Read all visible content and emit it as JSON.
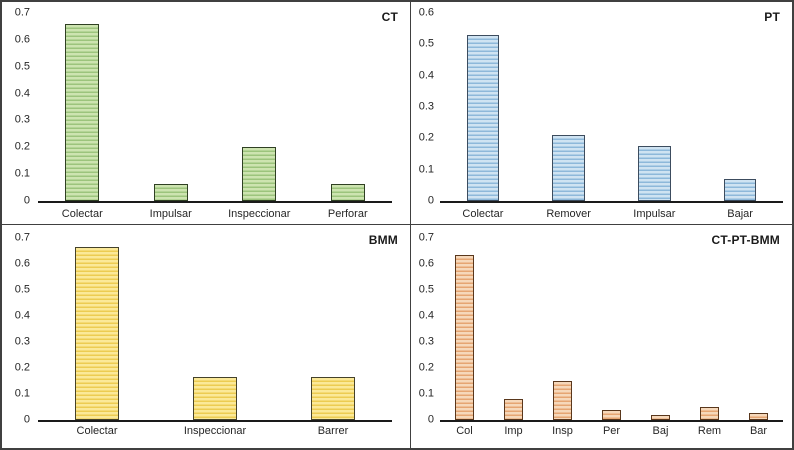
{
  "page": {
    "background": "#ffffff",
    "frame_border_color": "#404040",
    "axis_line_color": "#1a1a1a",
    "text_color": "#262626"
  },
  "chart_data": [
    {
      "type": "bar",
      "title": "CT",
      "categories": [
        "Colectar",
        "Impulsar",
        "Inspeccionar",
        "Perforar"
      ],
      "values": [
        0.66,
        0.065,
        0.2,
        0.065
      ],
      "ylim": [
        0,
        0.7
      ],
      "yticks": [
        "0.7",
        "0.6",
        "0.5",
        "0.4",
        "0.3",
        "0.2",
        "0.1",
        "0"
      ],
      "xlabel": "",
      "ylabel": "",
      "grid": false,
      "legend": "none",
      "title_position": "top-right",
      "colors": {
        "fill": "#cde4b0",
        "stripe": "#9cc47c",
        "border": "#2f4023"
      }
    },
    {
      "type": "bar",
      "title": "PT",
      "categories": [
        "Colectar",
        "Remover",
        "Impulsar",
        "Bajar"
      ],
      "values": [
        0.53,
        0.21,
        0.175,
        0.07
      ],
      "ylim": [
        0,
        0.6
      ],
      "yticks": [
        "0.6",
        "0.5",
        "0.4",
        "0.3",
        "0.2",
        "0.1",
        "0"
      ],
      "xlabel": "",
      "ylabel": "",
      "grid": false,
      "legend": "none",
      "title_position": "top-right",
      "colors": {
        "fill": "#cfe3f2",
        "stripe": "#8db8da",
        "border": "#3c4c5e"
      }
    },
    {
      "type": "bar",
      "title": "BMM",
      "categories": [
        "Colectar",
        "Inspeccionar",
        "Barrer"
      ],
      "values": [
        0.665,
        0.165,
        0.165
      ],
      "ylim": [
        0,
        0.7
      ],
      "yticks": [
        "0.7",
        "0.6",
        "0.5",
        "0.4",
        "0.3",
        "0.2",
        "0.1",
        "0"
      ],
      "xlabel": "",
      "ylabel": "",
      "grid": false,
      "legend": "none",
      "title_position": "top-right",
      "colors": {
        "fill": "#fbe998",
        "stripe": "#eccc52",
        "border": "#45422a"
      }
    },
    {
      "type": "bar",
      "title": "CT-PT-BMM",
      "categories": [
        "Col",
        "Imp",
        "Insp",
        "Per",
        "Baj",
        "Rem",
        "Bar"
      ],
      "values": [
        0.635,
        0.08,
        0.15,
        0.04,
        0.018,
        0.05,
        0.027
      ],
      "ylim": [
        0,
        0.7
      ],
      "yticks": [
        "0.7",
        "0.6",
        "0.5",
        "0.4",
        "0.3",
        "0.2",
        "0.1",
        "0"
      ],
      "xlabel": "",
      "ylabel": "",
      "grid": false,
      "legend": "none",
      "title_position": "top-right",
      "colors": {
        "fill": "#f6d8ba",
        "stripe": "#e5a572",
        "border": "#59371c"
      }
    }
  ]
}
